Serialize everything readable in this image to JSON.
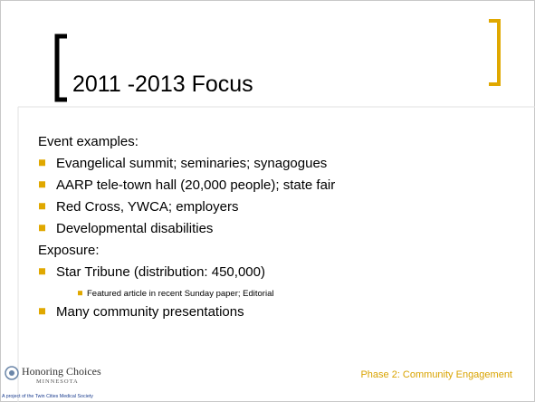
{
  "title": "2011 -2013 Focus",
  "body": [
    {
      "text": "Event examples:",
      "level": 0
    },
    {
      "text": "Evangelical summit; seminaries; synagogues",
      "level": 1
    },
    {
      "text": "AARP tele-town hall (20,000 people); state fair",
      "level": 1
    },
    {
      "text": "Red Cross, YWCA; employers",
      "level": 1
    },
    {
      "text": "Developmental disabilities",
      "level": 1
    },
    {
      "text": "Exposure:",
      "level": 0
    },
    {
      "text": "Star Tribune (distribution: 450,000)",
      "level": 1
    },
    {
      "text": "Featured article in recent Sunday paper; Editorial",
      "level": 2
    },
    {
      "text": "Many community presentations",
      "level": 1
    }
  ],
  "footer": {
    "logo_name": "Honoring Choices",
    "logo_region": "MINNESOTA",
    "logo_tagline": "A project of the Twin Cities Medical Society",
    "section": "Phase 2: Community Engagement"
  }
}
